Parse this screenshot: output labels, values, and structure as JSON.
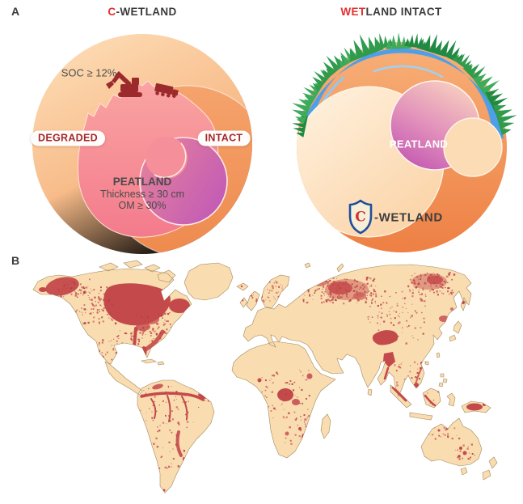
{
  "colors": {
    "accent_red": "#E2302F",
    "text_dark": "#3B3B3B",
    "label_red": "#A5282B",
    "soil_orange": "#EF8245",
    "degraded_pink": "#F37B8C",
    "peatland_magenta": "#C45DB4",
    "water_blue": "#4E9EE9",
    "grass_green": "#2E9B4D",
    "map_land": "#F9DCB0",
    "map_wetland": "#C4494B"
  },
  "panel_a": {
    "label": "A",
    "left_diagram": {
      "title_highlight": "C",
      "title_rest": "-WETLAND",
      "soc_label": "SOC ≥ 12%",
      "degraded_label": "DEGRADED",
      "intact_label": "INTACT",
      "peatland_title": "PEATLAND",
      "peatland_line1": "Thickness ≥ 30 cm",
      "peatland_line2": "OM ≥ 30%"
    },
    "right_diagram": {
      "title_highlight": "WET",
      "title_rest": "LAND INTACT",
      "peatland_label": "PEATLAND",
      "shield_letter": "C",
      "shield_suffix": "-WETLAND"
    }
  },
  "panel_b": {
    "label": "B"
  }
}
